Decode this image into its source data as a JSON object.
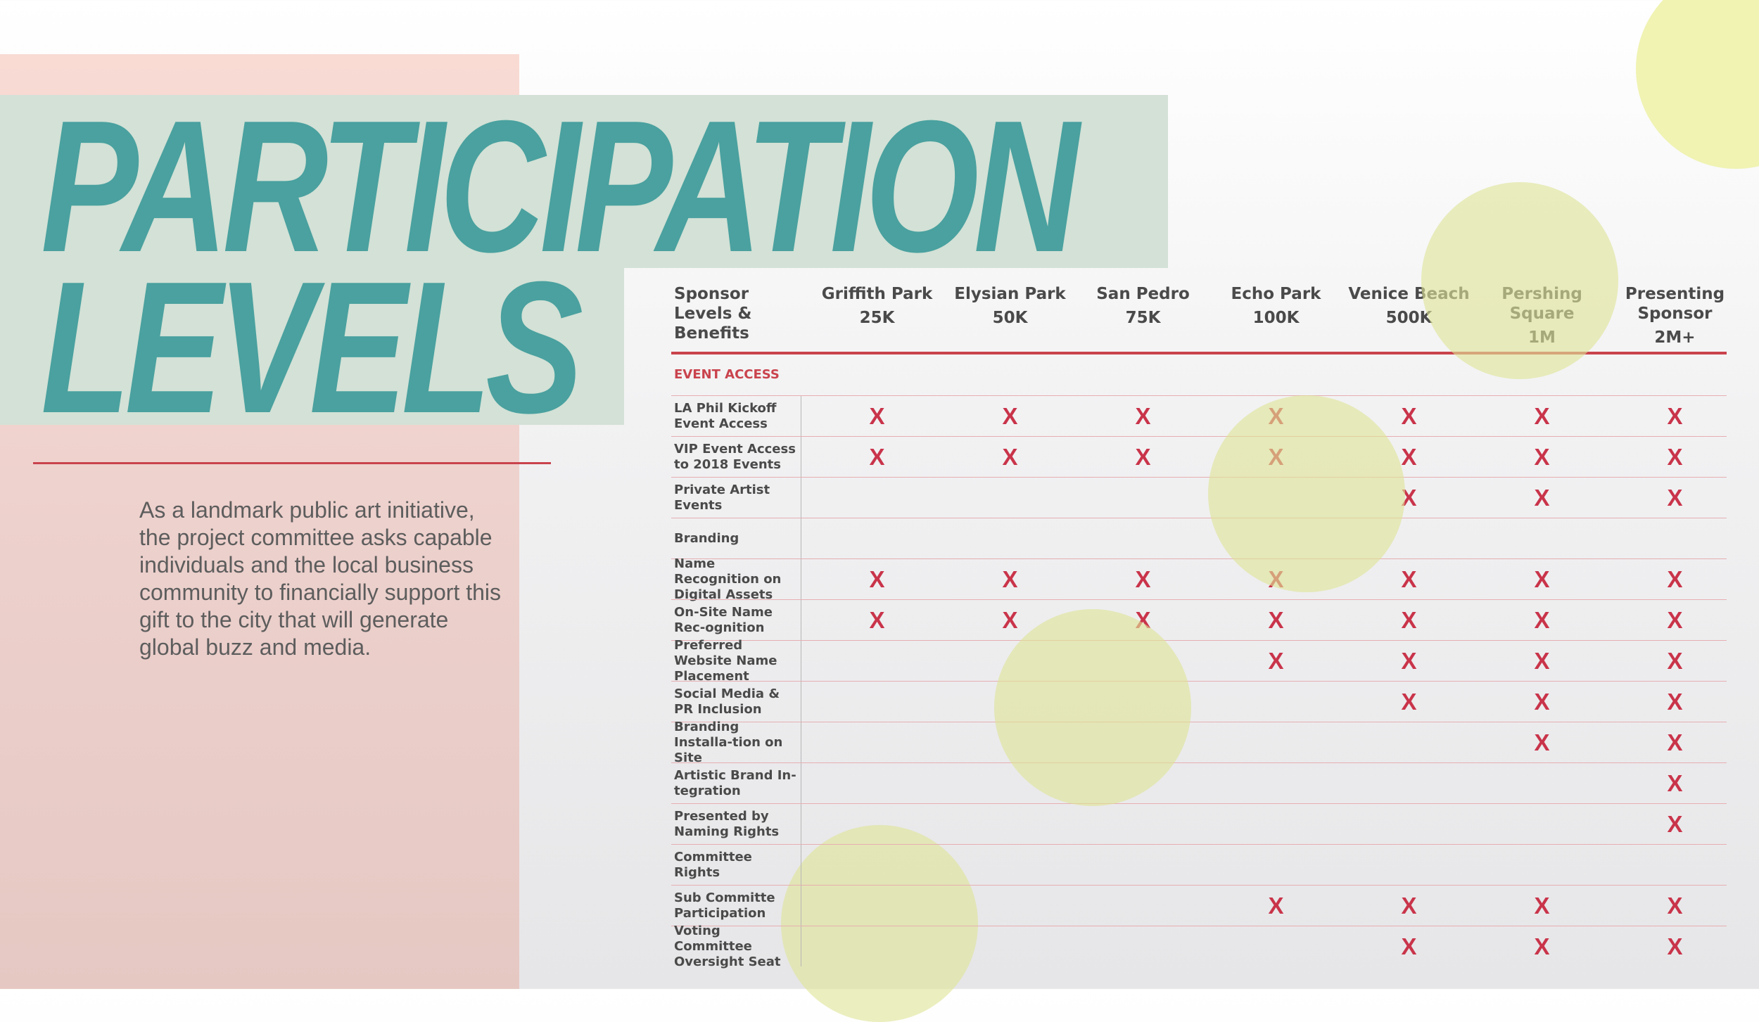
{
  "title": {
    "line1": "PARTICIPATION",
    "line2": "LEVELS"
  },
  "intro": "As a landmark public art initiative, the project committee asks capable individuals and the local business community to financially support this gift to the city that will generate global buzz and media.",
  "colors": {
    "teal": "#4aa19f",
    "red": "#c9434d",
    "mark": "#c9344a",
    "pink": "#f9dbd4",
    "green": "#d3e1d6",
    "yellow": "#dee496"
  },
  "matrix": {
    "corner": "Sponsor Levels & Benefits",
    "mark_symbol": "X",
    "levels": [
      {
        "name": "Griffith Park",
        "amount": "25K"
      },
      {
        "name": "Elysian Park",
        "amount": "50K"
      },
      {
        "name": "San Pedro",
        "amount": "75K"
      },
      {
        "name": "Echo Park",
        "amount": "100K"
      },
      {
        "name": "Venice Beach",
        "amount": "500K"
      },
      {
        "name": "Pershing Square",
        "amount": "1M"
      },
      {
        "name": "Presenting Sponsor",
        "amount": "2M+"
      }
    ],
    "section": "EVENT ACCESS",
    "rows": [
      {
        "label": "LA Phil Kickoff Event Access",
        "marks": [
          1,
          1,
          1,
          1,
          1,
          1,
          1
        ]
      },
      {
        "label": "VIP Event Access to 2018 Events",
        "marks": [
          1,
          1,
          1,
          1,
          1,
          1,
          1
        ]
      },
      {
        "label": "Private Artist Events",
        "marks": [
          0,
          0,
          0,
          0,
          1,
          1,
          1
        ]
      },
      {
        "label": "Branding",
        "marks": [
          0,
          0,
          0,
          0,
          0,
          0,
          0
        ]
      },
      {
        "label": "Name Recognition on Digital Assets",
        "marks": [
          1,
          1,
          1,
          1,
          1,
          1,
          1
        ]
      },
      {
        "label": "On-Site Name Rec-ognition",
        "marks": [
          1,
          1,
          1,
          1,
          1,
          1,
          1
        ]
      },
      {
        "label": "Preferred Website Name Placement",
        "marks": [
          0,
          0,
          0,
          1,
          1,
          1,
          1
        ]
      },
      {
        "label": "Social Media & PR Inclusion",
        "marks": [
          0,
          0,
          0,
          0,
          1,
          1,
          1
        ]
      },
      {
        "label": "Branding Installa-tion on Site",
        "marks": [
          0,
          0,
          0,
          0,
          0,
          1,
          1
        ]
      },
      {
        "label": "Artistic Brand In-tegration",
        "marks": [
          0,
          0,
          0,
          0,
          0,
          0,
          1
        ]
      },
      {
        "label": "Presented by Naming Rights",
        "marks": [
          0,
          0,
          0,
          0,
          0,
          0,
          1
        ]
      },
      {
        "label": "Committee Rights",
        "marks": [
          0,
          0,
          0,
          0,
          0,
          0,
          0
        ]
      },
      {
        "label": "Sub Committe Participation",
        "marks": [
          0,
          0,
          0,
          1,
          1,
          1,
          1
        ]
      },
      {
        "label": "Voting Committee Oversight Seat",
        "marks": [
          0,
          0,
          0,
          0,
          1,
          1,
          1
        ]
      }
    ]
  }
}
